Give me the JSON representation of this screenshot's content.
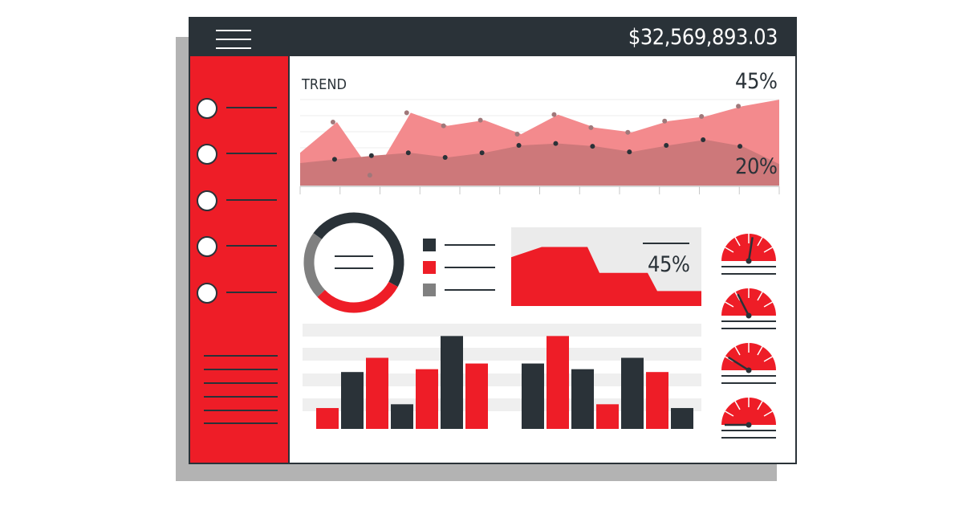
{
  "header": {
    "balance": "$32,569,893.03",
    "menu_icon": "hamburger-menu-icon"
  },
  "sidebar": {
    "nav_item_count": 5,
    "text_line_count": 6,
    "background": "#ee1d27"
  },
  "trend": {
    "title": "TREND",
    "upper_label": "45%",
    "lower_label": "20%",
    "upper_series": [
      0.36,
      0.69,
      0.12,
      0.79,
      0.65,
      0.71,
      0.56,
      0.77,
      0.63,
      0.58,
      0.7,
      0.75,
      0.86,
      0.93
    ],
    "lower_series": [
      0.25,
      0.29,
      0.33,
      0.36,
      0.31,
      0.36,
      0.44,
      0.46,
      0.43,
      0.37,
      0.44,
      0.5,
      0.43,
      0.24
    ],
    "colors": {
      "upper": "#f38a8d",
      "lower": "#cd787a",
      "dots": "#2a3238"
    }
  },
  "donut": {
    "segments": [
      {
        "color": "#2a3238",
        "fraction": 0.48
      },
      {
        "color": "#ee1d27",
        "fraction": 0.3
      },
      {
        "color": "#808080",
        "fraction": 0.22
      }
    ]
  },
  "legend": {
    "swatches": [
      "#2a3238",
      "#ee1d27",
      "#808080"
    ]
  },
  "area_card": {
    "value": "45%",
    "levels": [
      0.62,
      0.75,
      0.75,
      0.42,
      0.42,
      0.19,
      0.19
    ]
  },
  "bar_chart": {
    "groups": [
      {
        "values": [
          0.22,
          0.6,
          0.75,
          0.26,
          0.63,
          0.98,
          0.69
        ],
        "colors": [
          "#ee1d27",
          "#2a3238",
          "#ee1d27",
          "#2a3238",
          "#ee1d27",
          "#2a3238",
          "#ee1d27"
        ]
      },
      {
        "values": [
          0.69,
          0.98,
          0.63,
          0.26,
          0.75,
          0.6,
          0.22
        ],
        "colors": [
          "#2a3238",
          "#ee1d27",
          "#2a3238",
          "#ee1d27",
          "#2a3238",
          "#ee1d27",
          "#2a3238"
        ]
      }
    ]
  },
  "gauges": [
    {
      "value": 0.55
    },
    {
      "value": 0.35
    },
    {
      "value": 0.18
    },
    {
      "value": 0.0
    }
  ]
}
